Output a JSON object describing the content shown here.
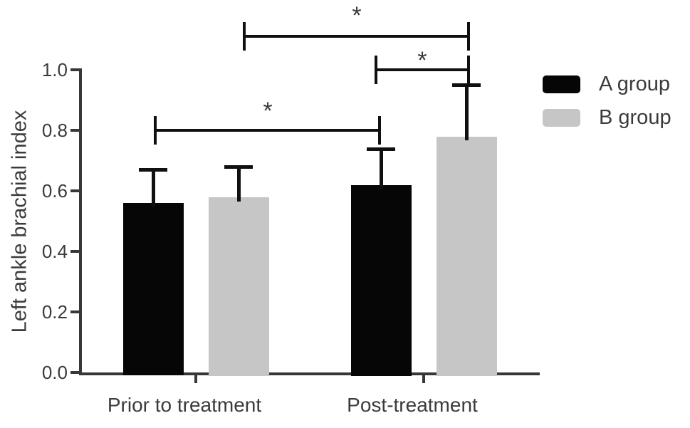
{
  "chart_data": {
    "type": "bar",
    "title": "",
    "ylabel": "Left ankle brachial index",
    "xlabel": "",
    "categories": [
      "Prior to treatment",
      "Post-treatment"
    ],
    "series": [
      {
        "name": "A group",
        "color": "#060606",
        "values": [
          0.56,
          0.62
        ],
        "errors": [
          0.11,
          0.12
        ]
      },
      {
        "name": "B group",
        "color": "#c6c6c6",
        "values": [
          0.58,
          0.78
        ],
        "errors": [
          0.1,
          0.17
        ]
      }
    ],
    "ylim": [
      0.0,
      1.0
    ],
    "yticks": [
      "0.0",
      "0.2",
      "0.4",
      "0.6",
      "0.8",
      "1.0"
    ],
    "grid": false,
    "legend_position": "right-top",
    "error_bars": "upper-only",
    "significance_brackets": [
      {
        "label": "*",
        "from": {
          "category": 0,
          "series": 1
        },
        "to": {
          "category": 1,
          "series": 1
        },
        "y": 1.11,
        "dx_from": 8,
        "dx_to": 3,
        "label_rise": 34
      },
      {
        "label": "*",
        "from": {
          "category": 1,
          "series": 0
        },
        "to": {
          "category": 1,
          "series": 1
        },
        "y": 1.0,
        "dx_from": -7,
        "dx_to": 3,
        "label_rise": 18
      },
      {
        "label": "*",
        "from": {
          "category": 0,
          "series": 0
        },
        "to": {
          "category": 1,
          "series": 0
        },
        "y": 0.8,
        "dx_from": 3,
        "dx_to": -2,
        "label_rise": 32
      }
    ]
  }
}
